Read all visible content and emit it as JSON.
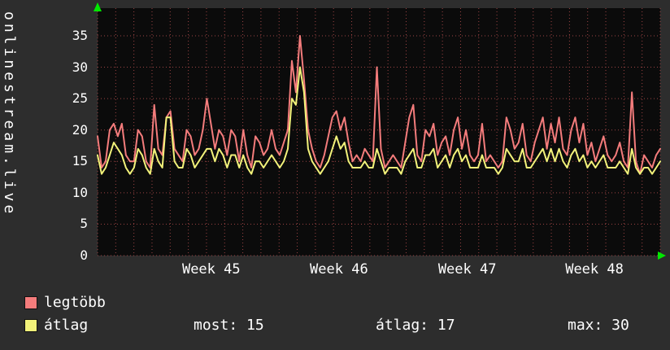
{
  "vertical_title": "onlinestream.live",
  "legend": {
    "series1_label": "legtöbb",
    "series2_label": "átlag"
  },
  "stats": {
    "most": "most: 15",
    "avg": "átlag: 17",
    "max": "max: 30"
  },
  "chart_data": {
    "type": "line",
    "title": "onlinestream.live",
    "x_tick_labels": [
      "Week 45",
      "Week 46",
      "Week 47",
      "Week 48"
    ],
    "x_tick_positions": [
      0.202,
      0.429,
      0.657,
      0.883
    ],
    "y_ticks": [
      0,
      5,
      10,
      15,
      20,
      25,
      30,
      35
    ],
    "ylim": [
      0,
      39.4
    ],
    "grid": true,
    "grid_divisions_x": 31,
    "legend_position": "bottom-left",
    "colors": {
      "background": "#0b0b0b",
      "grid": "#9c4444",
      "arrow": "#00e800",
      "text": "#ffffff",
      "frame": "#2d2d2d"
    },
    "series": [
      {
        "name": "legtöbb",
        "color": "#f47c7c",
        "values": [
          19,
          14,
          15,
          20,
          21,
          19,
          21,
          16,
          15,
          15,
          20,
          19,
          15,
          14,
          24,
          17,
          16,
          22,
          23,
          17,
          16,
          15,
          20,
          19,
          16,
          17,
          20,
          25,
          21,
          17,
          20,
          19,
          16,
          20,
          19,
          15,
          20,
          16,
          14,
          19,
          18,
          16,
          17,
          20,
          17,
          16,
          18,
          20,
          31,
          26,
          35,
          28,
          20,
          17,
          15,
          14,
          16,
          19,
          22,
          23,
          20,
          22,
          18,
          15,
          16,
          15,
          17,
          16,
          15,
          30,
          17,
          14,
          15,
          16,
          15,
          14,
          18,
          22,
          24,
          16,
          15,
          20,
          19,
          21,
          16,
          18,
          19,
          16,
          20,
          22,
          17,
          20,
          16,
          15,
          16,
          21,
          15,
          16,
          15,
          14,
          15,
          22,
          20,
          17,
          18,
          21,
          16,
          15,
          18,
          20,
          22,
          17,
          21,
          18,
          22,
          17,
          16,
          20,
          22,
          18,
          21,
          16,
          18,
          15,
          17,
          19,
          16,
          15,
          16,
          18,
          15,
          14,
          26,
          15,
          13,
          16,
          15,
          14,
          16,
          17
        ]
      },
      {
        "name": "átlag",
        "color": "#f2f27a",
        "values": [
          16,
          13,
          14,
          16,
          18,
          17,
          16,
          14,
          13,
          14,
          17,
          16,
          14,
          13,
          17,
          15,
          14,
          22,
          22,
          15,
          14,
          14,
          17,
          16,
          14,
          15,
          16,
          17,
          17,
          15,
          17,
          16,
          14,
          16,
          16,
          14,
          16,
          14,
          13,
          15,
          15,
          14,
          15,
          16,
          15,
          14,
          15,
          17,
          25,
          24,
          30,
          26,
          17,
          15,
          14,
          13,
          14,
          15,
          17,
          19,
          17,
          18,
          15,
          14,
          14,
          14,
          15,
          14,
          14,
          17,
          15,
          13,
          14,
          14,
          14,
          13,
          15,
          16,
          17,
          14,
          14,
          16,
          16,
          17,
          14,
          15,
          16,
          14,
          16,
          17,
          15,
          16,
          14,
          14,
          14,
          16,
          14,
          14,
          14,
          13,
          14,
          17,
          16,
          15,
          15,
          17,
          14,
          14,
          15,
          16,
          17,
          15,
          17,
          15,
          17,
          15,
          14,
          16,
          17,
          15,
          16,
          14,
          15,
          14,
          15,
          16,
          14,
          14,
          14,
          15,
          14,
          13,
          17,
          14,
          13,
          14,
          14,
          13,
          14,
          15
        ]
      }
    ],
    "summary": {
      "most": 15,
      "atlag": 17,
      "max": 30
    }
  }
}
